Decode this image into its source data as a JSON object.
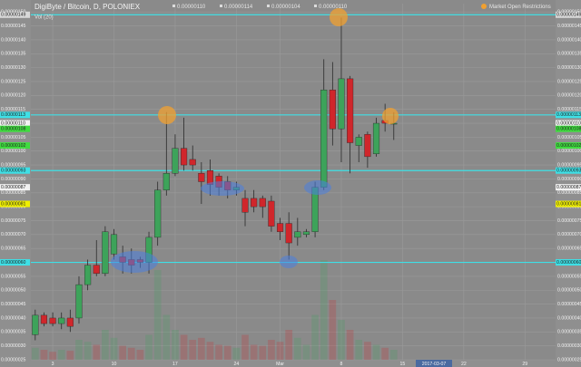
{
  "chart_data": {
    "type": "candlestick",
    "title": "DigiByte / Bitcoin, D, POLONIEX",
    "ohlc_readout": [
      "0.00000110",
      "0.00000114",
      "0.00000104",
      "0.00000110"
    ],
    "volume_title": "Vol (20)",
    "status_text": "Market Open Restrictions",
    "crosshair_date": "2017-03-07",
    "up_color": "#3da35a",
    "down_color": "#d0262b",
    "categories": [
      null,
      null,
      "3",
      null,
      null,
      null,
      null,
      null,
      null,
      "10",
      null,
      null,
      null,
      null,
      null,
      null,
      "17",
      null,
      null,
      null,
      null,
      null,
      null,
      "24",
      null,
      null,
      null,
      null,
      "Mar",
      null,
      null,
      null,
      null,
      null,
      null,
      "8",
      null,
      null,
      null,
      null,
      null,
      null,
      "15",
      null,
      null,
      null,
      null,
      null,
      null,
      "22",
      null,
      null,
      null,
      null,
      null,
      null,
      "29",
      null,
      null,
      null
    ],
    "open": [
      3.4e-07,
      4.1e-07,
      4e-07,
      3.8e-07,
      4e-07,
      4e-07,
      5.2e-07,
      5.9e-07,
      5.6e-07,
      6.3e-07,
      6.2e-07,
      6.1e-07,
      6.1e-07,
      6e-07,
      6.9e-07,
      8.6e-07,
      9.2e-07,
      1.01e-06,
      9.7e-07,
      9.2e-07,
      9.3e-07,
      9.1e-07,
      8.9e-07,
      8.6e-07,
      8.3e-07,
      8.3e-07,
      8.3e-07,
      8.2e-07,
      7.4e-07,
      7.4e-07,
      6.9e-07,
      7e-07,
      7.1e-07,
      8.7e-07,
      1.22e-06,
      1.08e-06,
      1.26e-06,
      1.02e-06,
      1.06e-06,
      9.9e-07,
      1.11e-06,
      1.1e-06,
      null,
      null,
      null,
      null,
      null,
      null,
      null,
      null,
      null,
      null,
      null,
      null,
      null,
      null,
      null,
      null,
      null,
      null
    ],
    "high": [
      4.3e-07,
      4.2e-07,
      4.2e-07,
      4.2e-07,
      4.3e-07,
      5.5e-07,
      6.1e-07,
      6.8e-07,
      7.3e-07,
      7.2e-07,
      6.6e-07,
      6.5e-07,
      6.2e-07,
      7.1e-07,
      8.9e-07,
      1.14e-06,
      1.06e-06,
      1.12e-06,
      1.02e-06,
      9.6e-07,
      9.7e-07,
      9.2e-07,
      9.1e-07,
      8.9e-07,
      8.6e-07,
      8.6e-07,
      8.4e-07,
      8.4e-07,
      7.6e-07,
      7.8e-07,
      7.6e-07,
      7.2e-07,
      8.9e-07,
      1.33e-06,
      1.32e-06,
      1.48e-06,
      1.27e-06,
      1.06e-06,
      1.07e-06,
      1.12e-06,
      1.17e-06,
      1.14e-06,
      null,
      null,
      null,
      null,
      null,
      null,
      null,
      null,
      null,
      null,
      null,
      null,
      null,
      null,
      null,
      null,
      null,
      null
    ],
    "low": [
      3.2e-07,
      3.7e-07,
      3.7e-07,
      3.6e-07,
      3.5e-07,
      3.8e-07,
      5e-07,
      5.5e-07,
      5.5e-07,
      6.1e-07,
      5.6e-07,
      5.6e-07,
      5.8e-07,
      5.6e-07,
      6.6e-07,
      8.4e-07,
      9.1e-07,
      9.3e-07,
      9.3e-07,
      8.1e-07,
      8.4e-07,
      8.4e-07,
      8.3e-07,
      8.4e-07,
      7.3e-07,
      7.8e-07,
      7.6e-07,
      7.1e-07,
      6.8e-07,
      6.1e-07,
      6.6e-07,
      6.9e-07,
      6.9e-07,
      8.6e-07,
      1.02e-06,
      9.6e-07,
      9.2e-07,
      9.6e-07,
      9.4e-07,
      9.8e-07,
      1.07e-06,
      1.04e-06,
      null,
      null,
      null,
      null,
      null,
      null,
      null,
      null,
      null,
      null,
      null,
      null,
      null,
      null,
      null,
      null,
      null,
      null
    ],
    "close": [
      4.1e-07,
      3.8e-07,
      3.8e-07,
      4e-07,
      3.7e-07,
      5.2e-07,
      5.9e-07,
      5.6e-07,
      7.1e-07,
      7e-07,
      6e-07,
      5.9e-07,
      6e-07,
      6.9e-07,
      8.6e-07,
      9.2e-07,
      1.01e-06,
      9.5e-07,
      9.5e-07,
      8.9e-07,
      8.8e-07,
      8.7e-07,
      8.6e-07,
      8.7e-07,
      7.8e-07,
      8e-07,
      8e-07,
      7.3e-07,
      7.1e-07,
      6.7e-07,
      7.1e-07,
      7.1e-07,
      8.7e-07,
      1.22e-06,
      1.08e-06,
      1.26e-06,
      1.03e-06,
      1.05e-06,
      9.8e-07,
      1.1e-06,
      1.1e-06,
      1.1e-06,
      null,
      null,
      null,
      null,
      null,
      null,
      null,
      null,
      null,
      null,
      null,
      null,
      null,
      null,
      null,
      null,
      null,
      null
    ],
    "volume": [
      12,
      10,
      8,
      10,
      9,
      20,
      18,
      15,
      30,
      22,
      14,
      12,
      10,
      25,
      90,
      45,
      30,
      25,
      20,
      22,
      18,
      15,
      14,
      12,
      25,
      15,
      14,
      20,
      18,
      30,
      22,
      15,
      45,
      100,
      60,
      40,
      30,
      20,
      18,
      15,
      12,
      10,
      null,
      null,
      null,
      null,
      null,
      null,
      null,
      null,
      null,
      null,
      null,
      null,
      null,
      null,
      null,
      null,
      null,
      null
    ],
    "volume_lim": [
      0,
      100
    ],
    "ylim": [
      2.5e-07,
      1.53e-06
    ],
    "yticks": [
      {
        "value": 2.5e-07,
        "label": "0.00000025"
      },
      {
        "value": 3e-07,
        "label": "0.00000030"
      },
      {
        "value": 3.5e-07,
        "label": "0.00000035"
      },
      {
        "value": 4e-07,
        "label": "0.00000040"
      },
      {
        "value": 4.5e-07,
        "label": "0.00000045"
      },
      {
        "value": 5e-07,
        "label": "0.00000050"
      },
      {
        "value": 5.5e-07,
        "label": "0.00000055"
      },
      {
        "value": 6e-07,
        "label": "0.00000060"
      },
      {
        "value": 6.5e-07,
        "label": "0.00000065"
      },
      {
        "value": 7e-07,
        "label": "0.00000070"
      },
      {
        "value": 7.5e-07,
        "label": "0.00000075"
      },
      {
        "value": 8e-07,
        "label": "0.00000080"
      },
      {
        "value": 8.5e-07,
        "label": "0.00000085"
      },
      {
        "value": 9e-07,
        "label": "0.00000090"
      },
      {
        "value": 9.5e-07,
        "label": "0.00000095"
      },
      {
        "value": 1e-06,
        "label": "0.00000100"
      },
      {
        "value": 1.05e-06,
        "label": "0.00000105"
      },
      {
        "value": 1.1e-06,
        "label": "0.00000110"
      },
      {
        "value": 1.15e-06,
        "label": "0.00000115"
      },
      {
        "value": 1.2e-06,
        "label": "0.00000120"
      },
      {
        "value": 1.25e-06,
        "label": "0.00000125"
      },
      {
        "value": 1.3e-06,
        "label": "0.00000130"
      },
      {
        "value": 1.35e-06,
        "label": "0.00000135"
      },
      {
        "value": 1.4e-06,
        "label": "0.00000140"
      },
      {
        "value": 1.45e-06,
        "label": "0.00000145"
      },
      {
        "value": 1.5e-06,
        "label": "0.00000150"
      }
    ],
    "grid": true,
    "level_lines": {
      "color": "#3ee0e6",
      "values": [
        1.49e-06,
        1.13e-06,
        9.3e-07,
        6e-07
      ]
    },
    "price_markers": [
      {
        "value": 1.49e-06,
        "label": "0.00000149",
        "color": "#d8d8d8"
      },
      {
        "value": 1.13e-06,
        "label": "0.00000113",
        "color": "#3ee0e6"
      },
      {
        "value": 1.1e-06,
        "label": "0.00000110",
        "color": "#f2f2f2"
      },
      {
        "value": 1.08e-06,
        "label": "0.00000108",
        "color": "#3fdc3f"
      },
      {
        "value": 1.02e-06,
        "label": "0.00000102",
        "color": "#3fdc3f"
      },
      {
        "value": 9.3e-07,
        "label": "0.00000093",
        "color": "#3ee0e6"
      },
      {
        "value": 8.7e-07,
        "label": "0.00000087",
        "color": "#f2f2f2"
      },
      {
        "value": 8.1e-07,
        "label": "0.00000081",
        "color": "#f0f000"
      },
      {
        "value": 6e-07,
        "label": "0.00000060",
        "color": "#3ee0e6"
      }
    ]
  }
}
